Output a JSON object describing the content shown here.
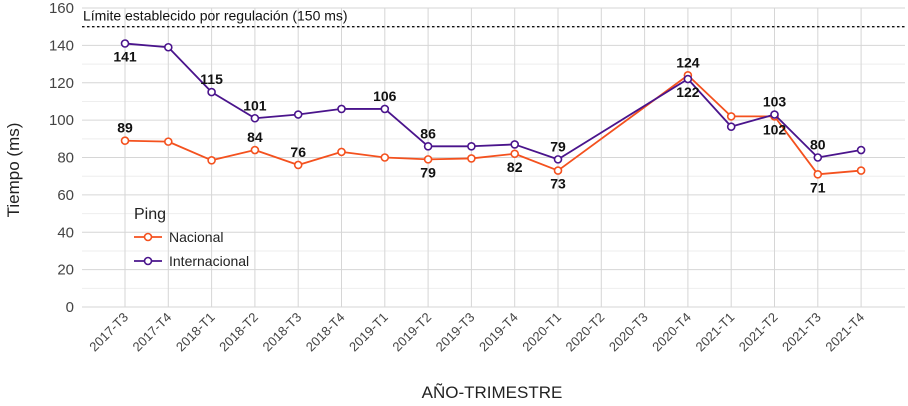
{
  "chart_data": {
    "type": "line",
    "categories": [
      "2017-T3",
      "2017-T4",
      "2018-T1",
      "2018-T2",
      "2018-T3",
      "2018-T4",
      "2019-T1",
      "2019-T2",
      "2019-T3",
      "2019-T4",
      "2020-T1",
      "2020-T2",
      "2020-T3",
      "2020-T4",
      "2021-T1",
      "2021-T2",
      "2021-T3",
      "2021-T4"
    ],
    "series": [
      {
        "name": "Nacional",
        "color": "#f4511e",
        "values": [
          89,
          88.5,
          78.5,
          84,
          76,
          83,
          80,
          79,
          79.5,
          82,
          73,
          null,
          null,
          124,
          102,
          102,
          71,
          73
        ],
        "labels": [
          {
            "i": 0,
            "text": "89",
            "pos": "above"
          },
          {
            "i": 3,
            "text": "84",
            "pos": "above"
          },
          {
            "i": 4,
            "text": "76",
            "pos": "above"
          },
          {
            "i": 7,
            "text": "79",
            "pos": "below"
          },
          {
            "i": 9,
            "text": "82",
            "pos": "below"
          },
          {
            "i": 10,
            "text": "73",
            "pos": "below"
          },
          {
            "i": 13,
            "text": "124",
            "pos": "above"
          },
          {
            "i": 15,
            "text": "102",
            "pos": "below"
          },
          {
            "i": 16,
            "text": "71",
            "pos": "below"
          }
        ]
      },
      {
        "name": "Internacional",
        "color": "#4a148c",
        "values": [
          141,
          139,
          115,
          101,
          103,
          106,
          106,
          86,
          86,
          87,
          79,
          null,
          null,
          122,
          96.5,
          103,
          80,
          84
        ],
        "labels": [
          {
            "i": 0,
            "text": "141",
            "pos": "below"
          },
          {
            "i": 2,
            "text": "115",
            "pos": "above"
          },
          {
            "i": 3,
            "text": "101",
            "pos": "above"
          },
          {
            "i": 6,
            "text": "106",
            "pos": "above"
          },
          {
            "i": 7,
            "text": "86",
            "pos": "above"
          },
          {
            "i": 10,
            "text": "79",
            "pos": "above"
          },
          {
            "i": 13,
            "text": "122",
            "pos": "below"
          },
          {
            "i": 15,
            "text": "103",
            "pos": "above"
          },
          {
            "i": 16,
            "text": "80",
            "pos": "above"
          }
        ]
      }
    ],
    "xlabel": "AÑO-TRIMESTRE",
    "ylabel": "Tiempo (ms)",
    "ylim": [
      0,
      160
    ],
    "yticks": [
      0,
      20,
      40,
      60,
      80,
      100,
      120,
      140,
      160
    ],
    "grid": true,
    "legend": {
      "title": "Ping",
      "placement": "bottom-left"
    },
    "reference_line": {
      "value": 150,
      "label": "Límite establecido por regulación (150 ms)",
      "style": "dotted"
    }
  }
}
